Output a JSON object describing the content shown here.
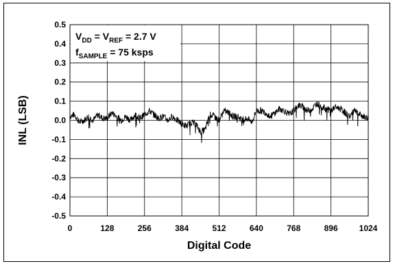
{
  "chart_data": {
    "type": "line",
    "title": "",
    "xlabel": "Digital Code",
    "ylabel": "INL (LSB)",
    "xlim": [
      0,
      1024
    ],
    "ylim": [
      -0.5,
      0.5
    ],
    "xticks": [
      "0",
      "128",
      "256",
      "384",
      "512",
      "640",
      "768",
      "896",
      "1024"
    ],
    "yticks": [
      "0.5",
      "0.4",
      "0.3",
      "0.2",
      "0.1",
      "0.0",
      "-0.1",
      "-0.2",
      "-0.3",
      "-0.4",
      "-0.5"
    ],
    "grid": true,
    "annotations": {
      "line1": {
        "v": "V",
        "dd": "DD",
        "eq1": " = V",
        "ref": "REF",
        "val": " = 2.7 V"
      },
      "line2": {
        "f": "f",
        "sample": "SAMPLE",
        "val": " = 75 ksps"
      }
    },
    "series": [
      {
        "line_color": "#000000",
        "x": [
          0,
          16,
          32,
          48,
          64,
          80,
          96,
          112,
          128,
          144,
          160,
          176,
          192,
          208,
          224,
          240,
          256,
          272,
          288,
          304,
          320,
          336,
          352,
          368,
          384,
          400,
          416,
          432,
          448,
          464,
          480,
          496,
          512,
          528,
          544,
          560,
          576,
          592,
          608,
          624,
          640,
          656,
          672,
          688,
          704,
          720,
          736,
          752,
          768,
          784,
          800,
          816,
          832,
          848,
          864,
          880,
          896,
          912,
          928,
          944,
          960,
          976,
          992,
          1008,
          1024
        ],
        "y": [
          0.02,
          0.03,
          -0.01,
          0.0,
          0.02,
          0.0,
          0.03,
          0.01,
          0.01,
          0.04,
          0.02,
          0.0,
          0.02,
          0.0,
          0.03,
          0.01,
          0.03,
          0.05,
          0.03,
          0.01,
          0.02,
          0.0,
          0.02,
          0.0,
          -0.02,
          -0.03,
          -0.01,
          -0.02,
          -0.06,
          -0.05,
          0.03,
          0.02,
          0.0,
          0.05,
          0.04,
          0.02,
          0.02,
          0.0,
          0.01,
          -0.01,
          0.05,
          0.05,
          0.04,
          0.02,
          0.04,
          0.06,
          0.05,
          0.03,
          0.05,
          0.08,
          0.07,
          0.05,
          0.06,
          0.09,
          0.07,
          0.06,
          0.05,
          0.07,
          0.06,
          0.04,
          0.02,
          0.05,
          0.03,
          0.02,
          0.01
        ]
      }
    ]
  }
}
